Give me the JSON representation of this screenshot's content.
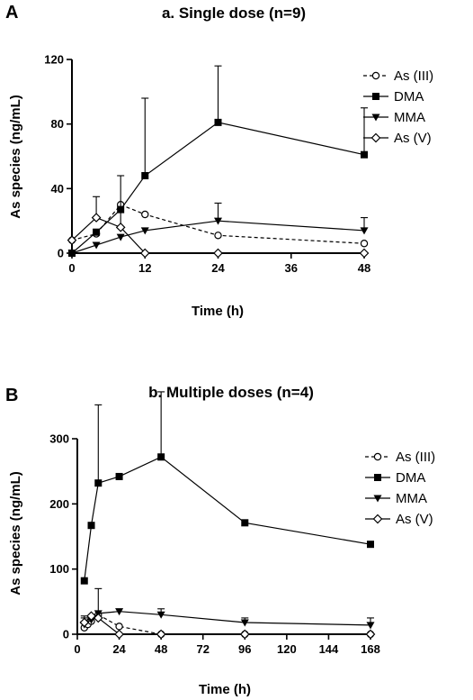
{
  "chart_data": [
    {
      "type": "line",
      "panel_label": "A",
      "title": "a. Single dose (n=9)",
      "xlabel": "Time (h)",
      "ylabel": "As species (ng/mL)",
      "xlim": [
        0,
        48
      ],
      "ylim": [
        0,
        120
      ],
      "xticks": [
        0,
        12,
        24,
        36,
        48
      ],
      "yticks": [
        0,
        40,
        80,
        120
      ],
      "legend_position": "right",
      "series": [
        {
          "name": "As (III)",
          "marker": "circle-open",
          "line": "dashed",
          "x": [
            0,
            4,
            8,
            12,
            24,
            48
          ],
          "y": [
            8,
            12,
            30,
            24,
            11,
            6
          ],
          "err": [
            0,
            0,
            0,
            0,
            0,
            0
          ]
        },
        {
          "name": "DMA",
          "marker": "square-filled",
          "line": "solid",
          "x": [
            0,
            4,
            8,
            12,
            24,
            48
          ],
          "y": [
            0,
            13,
            27,
            48,
            81,
            61
          ],
          "err": [
            0,
            0,
            0,
            48,
            35,
            29
          ]
        },
        {
          "name": "MMA",
          "marker": "triangle-down-filled",
          "line": "solid",
          "x": [
            0,
            4,
            8,
            12,
            24,
            48
          ],
          "y": [
            0,
            5,
            10,
            14,
            20,
            14
          ],
          "err": [
            0,
            0,
            0,
            0,
            11,
            8
          ]
        },
        {
          "name": "As (V)",
          "marker": "diamond-open",
          "line": "solid",
          "x": [
            0,
            4,
            8,
            12,
            24,
            48
          ],
          "y": [
            8,
            22,
            16,
            0,
            0,
            0
          ],
          "err": [
            0,
            13,
            32,
            0,
            0,
            0
          ]
        }
      ]
    },
    {
      "type": "line",
      "panel_label": "B",
      "title": "b. Multiple doses (n=4)",
      "xlabel": "Time (h)",
      "ylabel": "As species (ng/mL)",
      "xlim": [
        0,
        168
      ],
      "ylim": [
        0,
        300
      ],
      "xticks": [
        0,
        24,
        48,
        72,
        96,
        120,
        144,
        168
      ],
      "yticks": [
        0,
        100,
        200,
        300
      ],
      "legend_position": "right",
      "series": [
        {
          "name": "As (III)",
          "marker": "circle-open",
          "line": "dashed",
          "x": [
            4,
            6,
            8,
            12,
            24,
            48,
            96,
            168
          ],
          "y": [
            10,
            15,
            20,
            30,
            12,
            0,
            0,
            0
          ],
          "err": [
            0,
            0,
            0,
            0,
            0,
            0,
            0,
            0
          ]
        },
        {
          "name": "DMA",
          "marker": "square-filled",
          "line": "solid",
          "x": [
            4,
            8,
            12,
            24,
            48,
            96,
            168
          ],
          "y": [
            82,
            167,
            232,
            242,
            272,
            171,
            138
          ],
          "err": [
            0,
            0,
            120,
            0,
            100,
            0,
            0
          ]
        },
        {
          "name": "MMA",
          "marker": "triangle-down-filled",
          "line": "solid",
          "x": [
            4,
            8,
            12,
            24,
            48,
            96,
            168
          ],
          "y": [
            15,
            22,
            32,
            35,
            30,
            18,
            14
          ],
          "err": [
            10,
            0,
            38,
            0,
            9,
            7,
            11
          ]
        },
        {
          "name": "As (V)",
          "marker": "diamond-open",
          "line": "solid",
          "x": [
            4,
            8,
            12,
            24,
            48,
            96,
            168
          ],
          "y": [
            18,
            28,
            25,
            0,
            0,
            0,
            0
          ],
          "err": [
            10,
            0,
            0,
            0,
            0,
            0,
            0
          ]
        }
      ]
    }
  ]
}
